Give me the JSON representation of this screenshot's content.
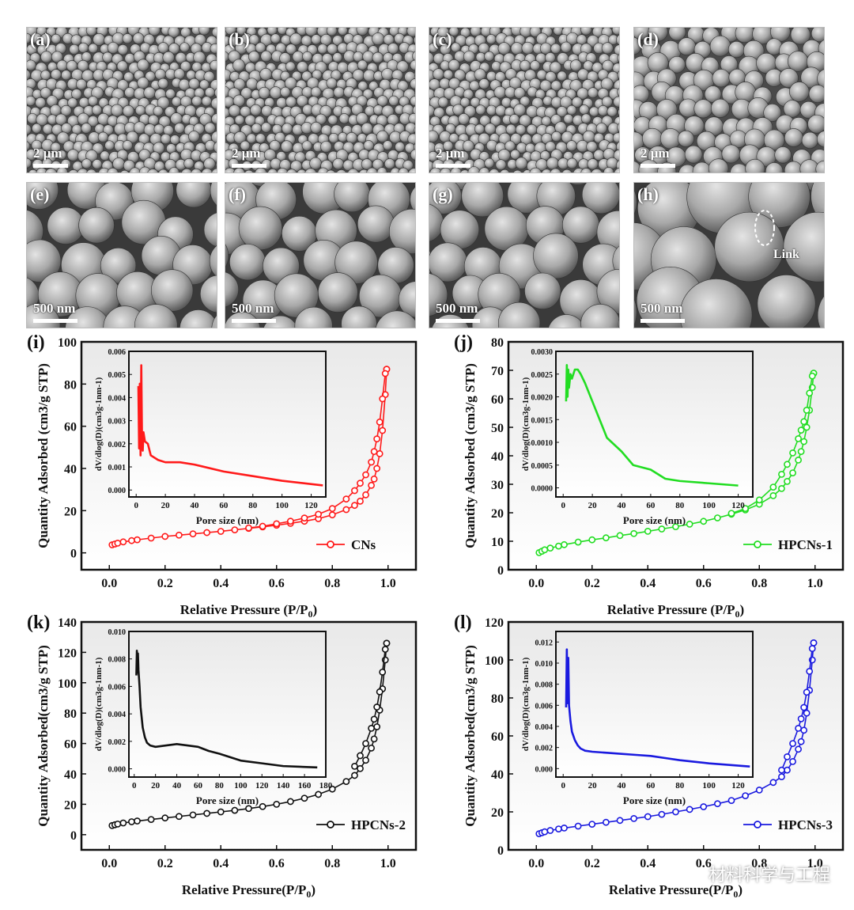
{
  "sem_panels": [
    {
      "label": "(a)",
      "scale": "2 μm"
    },
    {
      "label": "(b)",
      "scale": "2 μm"
    },
    {
      "label": "(c)",
      "scale": "2 μm"
    },
    {
      "label": "(d)",
      "scale": "2 μm"
    },
    {
      "label": "(e)",
      "scale": "500 nm"
    },
    {
      "label": "(f)",
      "scale": "500 nm"
    },
    {
      "label": "(g)",
      "scale": "500 nm"
    },
    {
      "label": "(h)",
      "scale": "500 nm",
      "annotation": "Link"
    }
  ],
  "watermark": "材料科学与工程",
  "colors": {
    "cns": "#ff1a1a",
    "hpcns1": "#22dd22",
    "hpcns2": "#111111",
    "hpcns3": "#1a1adf"
  },
  "chart_data": [
    {
      "type": "line",
      "panel": "(i)",
      "xlabel": "Relative Pressure (P/P0)",
      "ylabel": "Quantity Adsorbed (cm3/g STP)",
      "xlim": [
        -0.1,
        1.1
      ],
      "ylim": [
        -8,
        100
      ],
      "xticks": [
        0.0,
        0.2,
        0.4,
        0.6,
        0.8,
        1.0
      ],
      "yticks": [
        0,
        20,
        40,
        60,
        80,
        100
      ],
      "legend": "CNs",
      "series": [
        {
          "role": "adsorption",
          "x": [
            0.01,
            0.02,
            0.03,
            0.05,
            0.08,
            0.1,
            0.15,
            0.2,
            0.25,
            0.3,
            0.35,
            0.4,
            0.45,
            0.5,
            0.55,
            0.6,
            0.65,
            0.7,
            0.75,
            0.8,
            0.85,
            0.88,
            0.9,
            0.92,
            0.94,
            0.95,
            0.96,
            0.97,
            0.98,
            0.99,
            0.995
          ],
          "y": [
            3.8,
            4.2,
            4.6,
            5.2,
            5.8,
            6.2,
            7.0,
            7.8,
            8.4,
            9.0,
            9.6,
            10.2,
            10.9,
            11.6,
            12.3,
            13.1,
            14.0,
            15.0,
            16.2,
            18.0,
            20.5,
            22.5,
            24.5,
            27.5,
            32,
            35,
            40,
            47,
            58,
            75,
            87
          ]
        },
        {
          "role": "desorption",
          "x": [
            0.995,
            0.99,
            0.98,
            0.97,
            0.96,
            0.95,
            0.94,
            0.92,
            0.9,
            0.88,
            0.85,
            0.8,
            0.75,
            0.7,
            0.65,
            0.6,
            0.55,
            0.5
          ],
          "y": [
            87,
            85,
            73,
            62,
            54,
            48,
            43,
            37,
            33,
            29.5,
            25.5,
            21,
            18.3,
            16.5,
            15.0,
            13.8,
            12.6,
            11.8
          ]
        }
      ],
      "inset": {
        "xlabel": "Pore size (nm)",
        "ylabel": "dV/dlog(D)(cm3g-1nm-1)",
        "xlim": [
          -5,
          130
        ],
        "ylim": [
          -0.0003,
          0.006
        ],
        "xticks": [
          0,
          20,
          40,
          60,
          80,
          100,
          120
        ],
        "yticks": [
          0.0,
          0.001,
          0.002,
          0.003,
          0.004,
          0.005,
          0.006
        ],
        "x": [
          1.5,
          2,
          2.5,
          3,
          3.5,
          4,
          4.5,
          5,
          6,
          8,
          10,
          15,
          20,
          30,
          40,
          60,
          80,
          100,
          128
        ],
        "y": [
          0.0045,
          0.0018,
          0.0046,
          0.0015,
          0.0054,
          0.0022,
          0.0017,
          0.0025,
          0.0021,
          0.002,
          0.0015,
          0.0013,
          0.0012,
          0.0012,
          0.0011,
          0.0008,
          0.0006,
          0.0004,
          0.0002
        ]
      }
    },
    {
      "type": "line",
      "panel": "(j)",
      "xlabel": "Relative Pressure (P/P0)",
      "ylabel": "Quantity Adsorbed (cm3/g STP)",
      "xlim": [
        -0.1,
        1.1
      ],
      "ylim": [
        0,
        80
      ],
      "xticks": [
        0.0,
        0.2,
        0.4,
        0.6,
        0.8,
        1.0
      ],
      "yticks": [
        0,
        10,
        20,
        30,
        40,
        50,
        60,
        70,
        80
      ],
      "legend": "HPCNs-1",
      "series": [
        {
          "role": "adsorption",
          "x": [
            0.01,
            0.02,
            0.03,
            0.05,
            0.08,
            0.1,
            0.15,
            0.2,
            0.25,
            0.3,
            0.35,
            0.4,
            0.45,
            0.5,
            0.55,
            0.6,
            0.65,
            0.7,
            0.75,
            0.8,
            0.85,
            0.88,
            0.9,
            0.92,
            0.94,
            0.95,
            0.96,
            0.97,
            0.98,
            0.99,
            0.995
          ],
          "y": [
            6.0,
            6.5,
            7.0,
            7.6,
            8.3,
            8.8,
            9.7,
            10.5,
            11.2,
            12.0,
            12.7,
            13.5,
            14.3,
            15.1,
            16.0,
            17.0,
            18.2,
            19.5,
            21.0,
            23.0,
            26.0,
            28.5,
            31.0,
            34.0,
            38.5,
            41.5,
            45,
            50,
            56,
            64,
            69
          ]
        },
        {
          "role": "desorption",
          "x": [
            0.995,
            0.99,
            0.98,
            0.97,
            0.96,
            0.95,
            0.94,
            0.92,
            0.9,
            0.88,
            0.85,
            0.8,
            0.75,
            0.7
          ],
          "y": [
            69,
            68,
            62,
            56,
            52,
            49,
            46,
            41,
            37,
            33.5,
            29,
            24.5,
            21.5,
            19.8
          ]
        }
      ],
      "inset": {
        "xlabel": "Pore size (nm)",
        "ylabel": "dV/dlog(D)(cm3g-1nm-1)",
        "xlim": [
          -5,
          130
        ],
        "ylim": [
          -0.0002,
          0.003
        ],
        "xticks": [
          0,
          20,
          40,
          60,
          80,
          100,
          120
        ],
        "yticks": [
          0.0,
          0.0005,
          0.001,
          0.0015,
          0.002,
          0.0025,
          0.003
        ],
        "x": [
          2,
          2.5,
          3,
          3.5,
          4,
          5,
          6,
          8,
          10,
          12,
          15,
          20,
          25,
          30,
          40,
          48,
          60,
          70,
          80,
          100,
          120
        ],
        "y": [
          0.0019,
          0.0027,
          0.002,
          0.0026,
          0.0022,
          0.0025,
          0.0024,
          0.0026,
          0.0026,
          0.0025,
          0.0023,
          0.0019,
          0.0015,
          0.0011,
          0.0008,
          0.0005,
          0.0004,
          0.0002,
          0.00015,
          0.0001,
          5e-05
        ]
      }
    },
    {
      "type": "line",
      "panel": "(k)",
      "xlabel": "Relative Pressure(P/P0)",
      "ylabel": "Quantity Adsorbed(cm3/g STP)",
      "xlim": [
        -0.1,
        1.1
      ],
      "ylim": [
        -10,
        140
      ],
      "xticks": [
        0.0,
        0.2,
        0.4,
        0.6,
        0.8,
        1.0
      ],
      "yticks": [
        0,
        20,
        40,
        60,
        80,
        100,
        120,
        140
      ],
      "legend": "HPCNs-2",
      "series": [
        {
          "role": "adsorption",
          "x": [
            0.01,
            0.02,
            0.03,
            0.05,
            0.08,
            0.1,
            0.15,
            0.2,
            0.25,
            0.3,
            0.35,
            0.4,
            0.45,
            0.5,
            0.55,
            0.6,
            0.65,
            0.7,
            0.75,
            0.8,
            0.85,
            0.88,
            0.9,
            0.92,
            0.94,
            0.95,
            0.96,
            0.97,
            0.98,
            0.99,
            0.995
          ],
          "y": [
            6.0,
            6.5,
            7.0,
            7.7,
            8.5,
            9.0,
            10.0,
            11.0,
            12.0,
            13.0,
            14.0,
            15.0,
            16.0,
            17.2,
            18.5,
            20.0,
            21.8,
            24.0,
            26.5,
            30.0,
            35.0,
            39.0,
            43.5,
            49,
            57,
            63,
            71,
            82,
            96,
            115,
            126
          ]
        },
        {
          "role": "desorption",
          "x": [
            0.995,
            0.99,
            0.98,
            0.97,
            0.96,
            0.95,
            0.94,
            0.92,
            0.9,
            0.88
          ],
          "y": [
            126,
            122,
            107,
            94,
            84,
            76,
            70,
            60,
            52,
            45
          ]
        }
      ],
      "inset": {
        "xlabel": "Pore size (nm)",
        "ylabel": "dV/dlog(D)(cm3g-1nm-1)",
        "xlim": [
          -5,
          180
        ],
        "ylim": [
          -0.0006,
          0.01
        ],
        "xticks": [
          0,
          20,
          40,
          60,
          80,
          100,
          120,
          140,
          160,
          180
        ],
        "yticks": [
          0.0,
          0.002,
          0.004,
          0.006,
          0.008,
          0.01
        ],
        "x": [
          2,
          2.5,
          3,
          3.5,
          4,
          5,
          6,
          8,
          10,
          12,
          15,
          20,
          30,
          40,
          50,
          60,
          70,
          80,
          100,
          120,
          140,
          172
        ],
        "y": [
          0.0068,
          0.0086,
          0.007,
          0.0084,
          0.0072,
          0.006,
          0.0045,
          0.003,
          0.0023,
          0.0019,
          0.0017,
          0.0016,
          0.0017,
          0.0018,
          0.0017,
          0.0016,
          0.0013,
          0.0011,
          0.0006,
          0.0004,
          0.0002,
          0.0001
        ]
      }
    },
    {
      "type": "line",
      "panel": "(l)",
      "xlabel": "Relative Pressure(P/P0)",
      "ylabel": "Quantity Adsorbed(cm3/g STP)",
      "xlim": [
        -0.1,
        1.1
      ],
      "ylim": [
        0,
        120
      ],
      "xticks": [
        0.0,
        0.2,
        0.4,
        0.6,
        0.8,
        1.0
      ],
      "yticks": [
        0,
        20,
        40,
        60,
        80,
        100,
        120
      ],
      "legend": "HPCNs-3",
      "series": [
        {
          "role": "adsorption",
          "x": [
            0.01,
            0.02,
            0.03,
            0.05,
            0.08,
            0.1,
            0.15,
            0.2,
            0.25,
            0.3,
            0.35,
            0.4,
            0.45,
            0.5,
            0.55,
            0.6,
            0.65,
            0.7,
            0.75,
            0.8,
            0.85,
            0.88,
            0.9,
            0.92,
            0.94,
            0.95,
            0.96,
            0.97,
            0.98,
            0.99,
            0.995
          ],
          "y": [
            8.5,
            9.0,
            9.5,
            10.2,
            11.0,
            11.5,
            12.5,
            13.5,
            14.5,
            15.5,
            16.5,
            17.5,
            18.7,
            20.0,
            21.3,
            22.7,
            24.3,
            26.0,
            28.5,
            31.5,
            35.5,
            38.5,
            42,
            46.5,
            53,
            57,
            63,
            72,
            84,
            100,
            109
          ]
        },
        {
          "role": "desorption",
          "x": [
            0.995,
            0.99,
            0.98,
            0.97,
            0.96,
            0.95,
            0.94,
            0.92,
            0.9,
            0.88
          ],
          "y": [
            109,
            106,
            94,
            83,
            75,
            69,
            64,
            56,
            49,
            42
          ]
        }
      ],
      "inset": {
        "xlabel": "Pore size (nm)",
        "ylabel": "dV/dlog(D)(cm3g-1nm-1)",
        "xlim": [
          -5,
          130
        ],
        "ylim": [
          -0.0008,
          0.013
        ],
        "xticks": [
          0,
          20,
          40,
          60,
          80,
          100,
          120
        ],
        "yticks": [
          0.0,
          0.002,
          0.004,
          0.006,
          0.008,
          0.01,
          0.012
        ],
        "x": [
          2,
          2.5,
          3,
          3.5,
          4,
          5,
          6,
          8,
          10,
          12,
          15,
          20,
          30,
          40,
          50,
          60,
          70,
          80,
          100,
          128
        ],
        "y": [
          0.0058,
          0.0113,
          0.0062,
          0.0105,
          0.006,
          0.0045,
          0.0035,
          0.0027,
          0.0022,
          0.0019,
          0.0017,
          0.0016,
          0.0015,
          0.0014,
          0.0013,
          0.0012,
          0.001,
          0.0008,
          0.0005,
          0.0002
        ]
      }
    }
  ]
}
